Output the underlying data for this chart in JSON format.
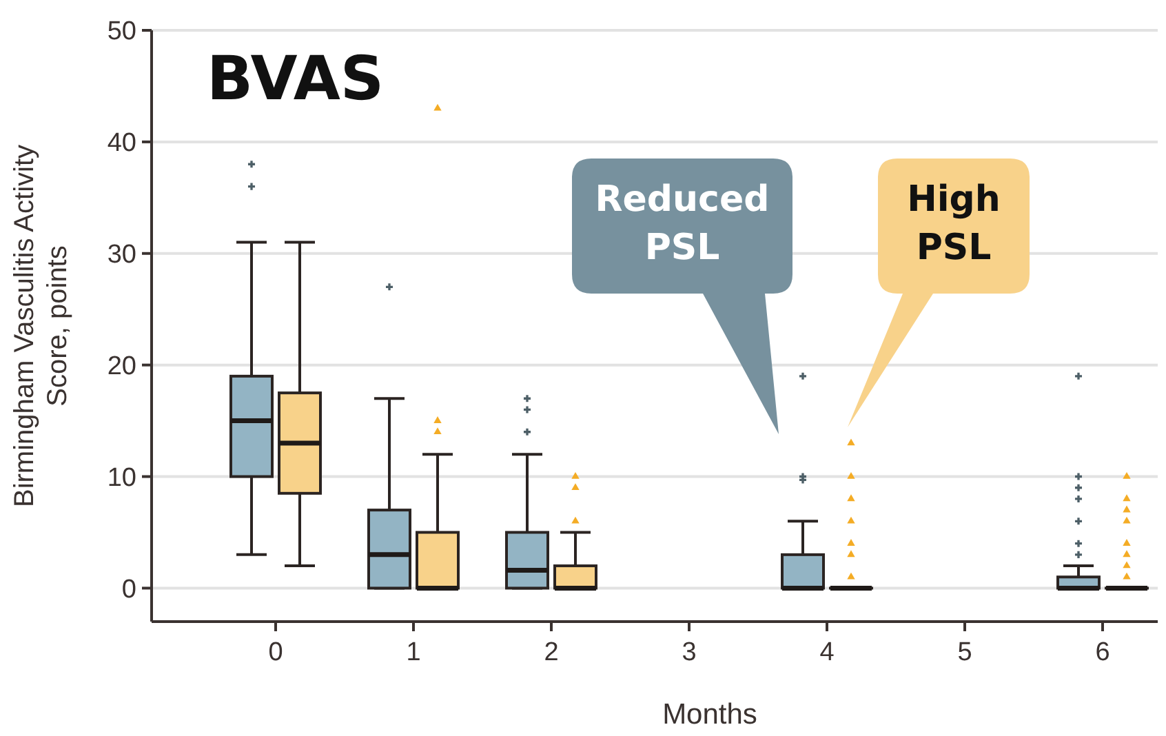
{
  "chart_data": {
    "type": "box",
    "title": "BVAS",
    "xlabel": "Months",
    "ylabel": "Birmingham Vasculitis Activity\nScore, points",
    "categories": [
      "0",
      "1",
      "2",
      "3",
      "4",
      "5",
      "6"
    ],
    "ylim": [
      -3,
      50
    ],
    "yticks": [
      0,
      10,
      20,
      30,
      40,
      50
    ],
    "grid": "y",
    "annotations": [
      "Reduced PSL",
      "High PSL"
    ],
    "series": [
      {
        "color": "#93b4c4",
        "boxes": [
          {
            "low": 3,
            "q1": 10,
            "median": 15,
            "q3": 19,
            "high": 31,
            "outliers": [
              36,
              38
            ]
          },
          {
            "low": 0,
            "q1": 0,
            "median": 3,
            "q3": 7,
            "high": 17,
            "outliers": [
              27
            ]
          },
          {
            "low": 0,
            "q1": 0,
            "median": 1.6,
            "q3": 5,
            "high": 12,
            "outliers": [
              14,
              16,
              17
            ]
          },
          null,
          {
            "low": 0,
            "q1": 0,
            "median": 0,
            "q3": 3,
            "high": 6,
            "outliers": [
              9.7,
              10,
              19
            ]
          },
          null,
          {
            "low": 0,
            "q1": 0,
            "median": 0,
            "q3": 1,
            "high": 2,
            "outliers": [
              3,
              4,
              6,
              8,
              9,
              10,
              19
            ]
          }
        ]
      },
      {
        "color": "#f8d28a",
        "boxes": [
          {
            "low": 2,
            "q1": 8.5,
            "median": 13,
            "q3": 17.5,
            "high": 31
          },
          {
            "low": 0,
            "q1": 0,
            "median": 0,
            "q3": 5,
            "high": 12,
            "outliers": [
              14,
              15,
              43
            ]
          },
          {
            "low": 0,
            "q1": 0,
            "median": 0,
            "q3": 2,
            "high": 5,
            "outliers": [
              6,
              9,
              10
            ]
          },
          null,
          {
            "low": 0,
            "q1": 0,
            "median": 0,
            "q3": 0,
            "high": 0,
            "outliers": [
              1,
              3,
              4,
              6,
              8,
              10,
              13
            ]
          },
          null,
          {
            "low": 0,
            "q1": 0,
            "median": 0,
            "q3": 0,
            "high": 0,
            "outliers": [
              1,
              2,
              3,
              4,
              6,
              7,
              8,
              10
            ]
          }
        ]
      }
    ]
  }
}
